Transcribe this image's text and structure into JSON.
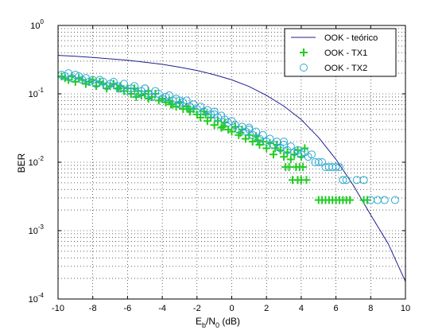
{
  "chart_data": {
    "type": "scatter",
    "title": "",
    "xlabel": {
      "pre": "E",
      "sub1": "b",
      "mid": "/N",
      "sub2": "0",
      "post": " (dB)"
    },
    "ylabel": "BER",
    "xlim": [
      -10,
      10
    ],
    "ylim": [
      0.0001,
      1
    ],
    "y_scale": "log",
    "grid": true,
    "legend_position": "top-right",
    "x_ticks": [
      -10,
      -8,
      -6,
      -4,
      -2,
      0,
      2,
      4,
      6,
      8,
      10
    ],
    "x_tick_labels": [
      "-10",
      "-8",
      "-6",
      "-4",
      "-2",
      "0",
      "2",
      "4",
      "6",
      "8",
      "10"
    ],
    "y_ticks": [
      {
        "value": 1,
        "base": "10",
        "exp": "0"
      },
      {
        "value": 0.1,
        "base": "10",
        "exp": "-1"
      },
      {
        "value": 0.01,
        "base": "10",
        "exp": "-2"
      },
      {
        "value": 0.001,
        "base": "10",
        "exp": "-3"
      },
      {
        "value": 0.0001,
        "base": "10",
        "exp": "-4"
      }
    ],
    "series": [
      {
        "name": "OOK - teórico",
        "kind": "line",
        "color": "#1f1f8f",
        "x": [
          -10,
          -9,
          -8,
          -7,
          -6,
          -5,
          -4,
          -3,
          -2,
          -1,
          0,
          1,
          2,
          3,
          4,
          5,
          6,
          7,
          8,
          9,
          10
        ],
        "y": [
          0.365,
          0.355,
          0.34,
          0.325,
          0.31,
          0.29,
          0.27,
          0.245,
          0.22,
          0.19,
          0.16,
          0.128,
          0.095,
          0.066,
          0.042,
          0.023,
          0.011,
          0.0046,
          0.0017,
          0.00065,
          0.00018
        ]
      },
      {
        "name": "OOK - TX1",
        "kind": "marker-plus",
        "color": "#22cc22",
        "x": [
          -9.8,
          -9.6,
          -9.4,
          -9.2,
          -9.0,
          -8.8,
          -8.6,
          -8.4,
          -8.2,
          -8.0,
          -7.8,
          -7.6,
          -7.4,
          -7.2,
          -7.0,
          -6.8,
          -6.6,
          -6.4,
          -6.2,
          -6.0,
          -5.8,
          -5.6,
          -5.4,
          -5.2,
          -5.0,
          -4.8,
          -4.6,
          -4.4,
          -4.2,
          -4.0,
          -3.8,
          -3.6,
          -3.4,
          -3.2,
          -3.0,
          -2.8,
          -2.6,
          -2.4,
          -2.2,
          -2.0,
          -1.8,
          -1.6,
          -1.4,
          -1.2,
          -1.0,
          -0.8,
          -0.6,
          -0.4,
          -0.2,
          0.0,
          0.2,
          0.4,
          0.6,
          0.8,
          1.0,
          1.2,
          1.4,
          1.6,
          1.8,
          2.0,
          2.2,
          2.4,
          2.6,
          2.8,
          3.0,
          3.2,
          3.4,
          3.6,
          3.8,
          4.0,
          4.2,
          3.3,
          3.1,
          3.7,
          3.9,
          4.1,
          3.5,
          4.0,
          4.3,
          5.0,
          5.2,
          5.4,
          5.6,
          5.8,
          6.0,
          6.2,
          6.4,
          6.6,
          6.8,
          7.6,
          7.8,
          -5.5,
          -6.5,
          -3.5,
          -2.5,
          -1.5,
          -4.8,
          -0.5,
          0.5,
          1.5,
          2.5,
          3.8
        ],
        "y": [
          0.18,
          0.17,
          0.16,
          0.18,
          0.15,
          0.17,
          0.16,
          0.14,
          0.15,
          0.16,
          0.13,
          0.15,
          0.14,
          0.12,
          0.13,
          0.14,
          0.12,
          0.13,
          0.11,
          0.12,
          0.1,
          0.12,
          0.11,
          0.095,
          0.1,
          0.085,
          0.09,
          0.1,
          0.08,
          0.085,
          0.075,
          0.08,
          0.07,
          0.065,
          0.075,
          0.06,
          0.065,
          0.055,
          0.06,
          0.05,
          0.045,
          0.055,
          0.04,
          0.045,
          0.035,
          0.04,
          0.032,
          0.038,
          0.03,
          0.028,
          0.033,
          0.025,
          0.03,
          0.022,
          0.025,
          0.02,
          0.024,
          0.018,
          0.02,
          0.016,
          0.019,
          0.013,
          0.018,
          0.015,
          0.012,
          0.014,
          0.011,
          0.013,
          0.015,
          0.012,
          0.016,
          0.0085,
          0.0085,
          0.0085,
          0.0085,
          0.0085,
          0.0055,
          0.0055,
          0.0055,
          0.0028,
          0.0028,
          0.0028,
          0.0028,
          0.0028,
          0.0028,
          0.0028,
          0.0028,
          0.0028,
          0.0028,
          0.0028,
          0.0028,
          0.09,
          0.12,
          0.07,
          0.06,
          0.05,
          0.11,
          0.033,
          0.027,
          0.021,
          0.016,
          0.0055
        ]
      },
      {
        "name": "OOK - TX2",
        "kind": "marker-circle",
        "color": "#2aaad0",
        "x": [
          -9.8,
          -9.6,
          -9.4,
          -9.2,
          -9.0,
          -8.8,
          -8.6,
          -8.4,
          -8.2,
          -8.0,
          -7.8,
          -7.6,
          -7.4,
          -7.2,
          -7.0,
          -6.8,
          -6.6,
          -6.4,
          -6.2,
          -6.0,
          -5.8,
          -5.6,
          -5.4,
          -5.2,
          -5.0,
          -4.8,
          -4.6,
          -4.4,
          -4.2,
          -4.0,
          -3.8,
          -3.6,
          -3.4,
          -3.2,
          -3.0,
          -2.8,
          -2.6,
          -2.4,
          -2.2,
          -2.0,
          -1.8,
          -1.6,
          -1.4,
          -1.2,
          -1.0,
          -0.8,
          -0.6,
          -0.4,
          -0.2,
          0.0,
          0.2,
          0.4,
          0.6,
          0.8,
          1.0,
          1.2,
          1.4,
          1.6,
          1.8,
          2.0,
          2.2,
          2.4,
          2.6,
          2.8,
          3.0,
          3.2,
          3.4,
          3.6,
          3.8,
          4.0,
          4.2,
          4.4,
          4.6,
          4.8,
          5.0,
          5.2,
          5.4,
          5.6,
          5.8,
          6.0,
          6.2,
          6.4,
          6.6,
          7.2,
          7.6,
          8.0,
          8.4,
          8.8,
          9.4,
          -5.0,
          -3.0,
          -1.0,
          1.0,
          3.0
        ],
        "y": [
          0.19,
          0.18,
          0.2,
          0.17,
          0.19,
          0.18,
          0.16,
          0.17,
          0.15,
          0.16,
          0.14,
          0.16,
          0.15,
          0.13,
          0.14,
          0.15,
          0.13,
          0.12,
          0.14,
          0.11,
          0.12,
          0.13,
          0.1,
          0.11,
          0.12,
          0.1,
          0.09,
          0.11,
          0.1,
          0.085,
          0.09,
          0.095,
          0.08,
          0.085,
          0.07,
          0.075,
          0.08,
          0.065,
          0.07,
          0.06,
          0.065,
          0.055,
          0.058,
          0.05,
          0.055,
          0.045,
          0.048,
          0.042,
          0.038,
          0.04,
          0.035,
          0.03,
          0.033,
          0.028,
          0.032,
          0.025,
          0.028,
          0.022,
          0.025,
          0.02,
          0.022,
          0.018,
          0.02,
          0.016,
          0.018,
          0.015,
          0.017,
          0.014,
          0.015,
          0.013,
          0.014,
          0.012,
          0.013,
          0.01,
          0.01,
          0.01,
          0.0085,
          0.0085,
          0.0085,
          0.0085,
          0.0085,
          0.0055,
          0.0055,
          0.0055,
          0.0055,
          0.0028,
          0.0028,
          0.0028,
          0.0028,
          0.12,
          0.08,
          0.05,
          0.03,
          0.02
        ]
      }
    ]
  }
}
